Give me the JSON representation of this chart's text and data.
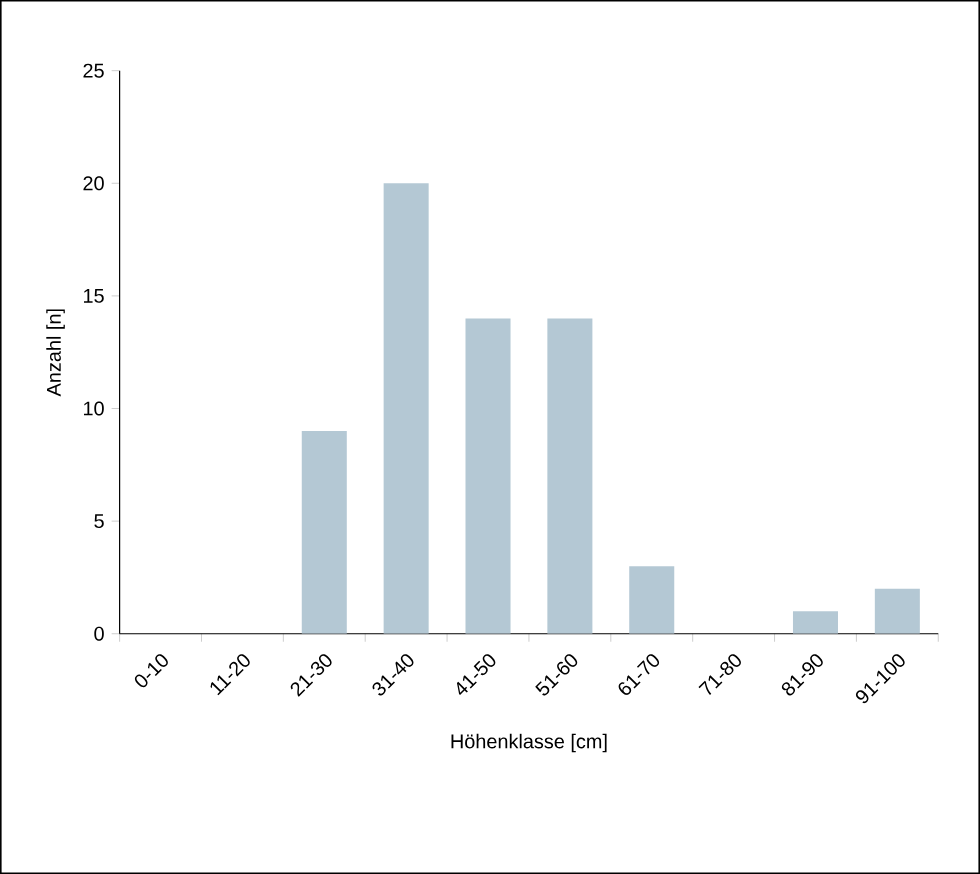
{
  "chart_data": {
    "type": "bar",
    "xlabel": "Höhenklasse [cm]",
    "ylabel": "Anzahl [n]",
    "categories": [
      "0-10",
      "11-20",
      "21-30",
      "31-40",
      "41-50",
      "51-60",
      "61-70",
      "71-80",
      "81-90",
      "91-100"
    ],
    "values": [
      0,
      0,
      9,
      20,
      14,
      14,
      3,
      0,
      1,
      2
    ],
    "color": "#b4c8d4",
    "ylim": [
      0,
      25
    ],
    "yticks": [
      0,
      5,
      10,
      15,
      20,
      25
    ],
    "grid": false
  }
}
